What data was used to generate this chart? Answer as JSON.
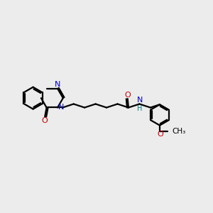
{
  "background_color": "#ececec",
  "bond_color": "#000000",
  "nitrogen_color": "#0000cc",
  "oxygen_color": "#cc0000",
  "nh_color": "#008080",
  "o_label_color": "#cc0000",
  "line_width": 1.6,
  "figsize": [
    3.0,
    3.0
  ],
  "dpi": 100,
  "xlim": [
    0,
    10
  ],
  "ylim": [
    0,
    10
  ]
}
